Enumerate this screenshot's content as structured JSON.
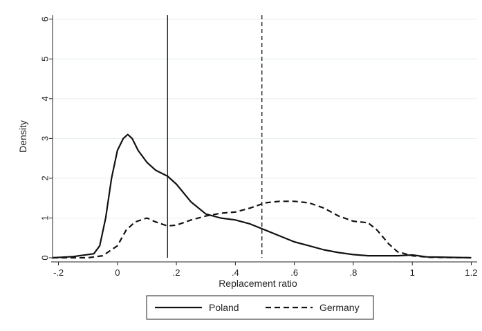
{
  "chart_data": {
    "type": "line",
    "title": "",
    "xlabel": "Replacement ratio",
    "ylabel": "Density",
    "xlim": [
      -0.22,
      1.22
    ],
    "ylim": [
      0,
      6.1
    ],
    "x_ticks": [
      -0.2,
      0,
      0.2,
      0.4,
      0.6,
      0.8,
      1,
      1.2
    ],
    "x_tick_labels": [
      "-.2",
      "0",
      ".2",
      ".4",
      ".6",
      ".8",
      "1",
      "1.2"
    ],
    "y_ticks": [
      0,
      1,
      2,
      3,
      4,
      5,
      6
    ],
    "y_tick_labels": [
      "0",
      "1",
      "2",
      "3",
      "4",
      "5",
      "6"
    ],
    "grid": "horizontal",
    "legend_position": "bottom",
    "vertical_lines": [
      {
        "x": 0.17,
        "style": "solid",
        "series": "Poland"
      },
      {
        "x": 0.49,
        "style": "dashed",
        "series": "Germany"
      }
    ],
    "series": [
      {
        "name": "Poland",
        "style": "solid",
        "x": [
          -0.22,
          -0.15,
          -0.08,
          -0.06,
          -0.04,
          -0.02,
          0.0,
          0.02,
          0.035,
          0.05,
          0.07,
          0.1,
          0.13,
          0.17,
          0.2,
          0.25,
          0.3,
          0.35,
          0.4,
          0.45,
          0.5,
          0.55,
          0.6,
          0.65,
          0.7,
          0.75,
          0.8,
          0.85,
          0.9,
          0.95,
          1.0,
          1.05,
          1.2
        ],
        "y": [
          0.0,
          0.03,
          0.1,
          0.3,
          1.0,
          2.0,
          2.7,
          3.0,
          3.1,
          3.0,
          2.7,
          2.4,
          2.2,
          2.05,
          1.85,
          1.4,
          1.1,
          1.0,
          0.95,
          0.85,
          0.7,
          0.55,
          0.4,
          0.3,
          0.2,
          0.13,
          0.08,
          0.05,
          0.05,
          0.05,
          0.07,
          0.02,
          0.0
        ]
      },
      {
        "name": "Germany",
        "style": "dashed",
        "x": [
          -0.22,
          -0.1,
          -0.05,
          0.0,
          0.03,
          0.06,
          0.1,
          0.13,
          0.17,
          0.2,
          0.25,
          0.3,
          0.35,
          0.4,
          0.45,
          0.5,
          0.55,
          0.6,
          0.65,
          0.7,
          0.75,
          0.8,
          0.85,
          0.88,
          0.92,
          0.95,
          1.0,
          1.03,
          1.06,
          1.2
        ],
        "y": [
          0.0,
          0.0,
          0.05,
          0.3,
          0.7,
          0.9,
          1.0,
          0.9,
          0.8,
          0.82,
          0.95,
          1.05,
          1.12,
          1.15,
          1.25,
          1.38,
          1.42,
          1.42,
          1.38,
          1.25,
          1.05,
          0.92,
          0.88,
          0.7,
          0.35,
          0.15,
          0.05,
          0.03,
          0.01,
          0.0
        ]
      }
    ]
  }
}
